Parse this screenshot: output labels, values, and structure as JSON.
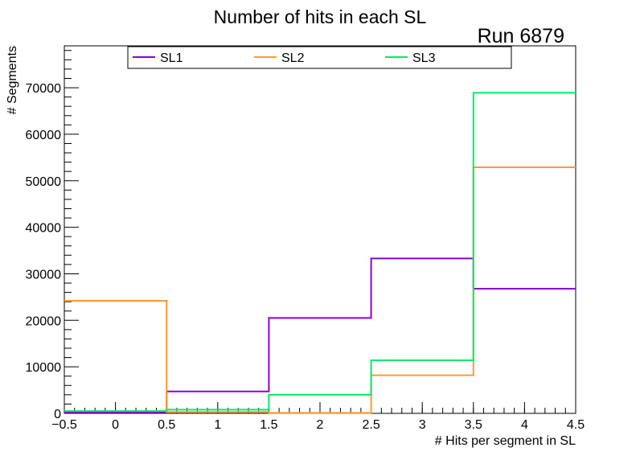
{
  "chart_data": {
    "type": "step-histogram",
    "title": "Number of hits in each SL",
    "annotation": "Run 6879",
    "xlabel": "# Hits per segment in SL",
    "ylabel": "# Segments",
    "xlim": [
      -0.5,
      4.5
    ],
    "ylim": [
      0,
      79000
    ],
    "x_ticks": [
      -0.5,
      0,
      0.5,
      1,
      1.5,
      2,
      2.5,
      3,
      3.5,
      4,
      4.5
    ],
    "x_tick_labels": [
      "−0.5",
      "0",
      "0.5",
      "1",
      "1.5",
      "2",
      "2.5",
      "3",
      "3.5",
      "4",
      "4.5"
    ],
    "y_ticks": [
      0,
      10000,
      20000,
      30000,
      40000,
      50000,
      60000,
      70000
    ],
    "y_tick_labels": [
      "0",
      "10000",
      "20000",
      "30000",
      "40000",
      "50000",
      "60000",
      "70000"
    ],
    "bin_edges": [
      -0.5,
      0.5,
      1.5,
      2.5,
      3.5,
      4.5
    ],
    "bin_centers": [
      0,
      1,
      2,
      3,
      4
    ],
    "legend_position": "top",
    "series": [
      {
        "name": "SL1",
        "color": "#8b00d4",
        "values": [
          200,
          4700,
          20500,
          33300,
          26800
        ]
      },
      {
        "name": "SL2",
        "color": "#ff9933",
        "values": [
          24200,
          300,
          100,
          8200,
          52900
        ]
      },
      {
        "name": "SL3",
        "color": "#00ee66",
        "values": [
          500,
          800,
          4000,
          11400,
          68900
        ]
      }
    ]
  }
}
